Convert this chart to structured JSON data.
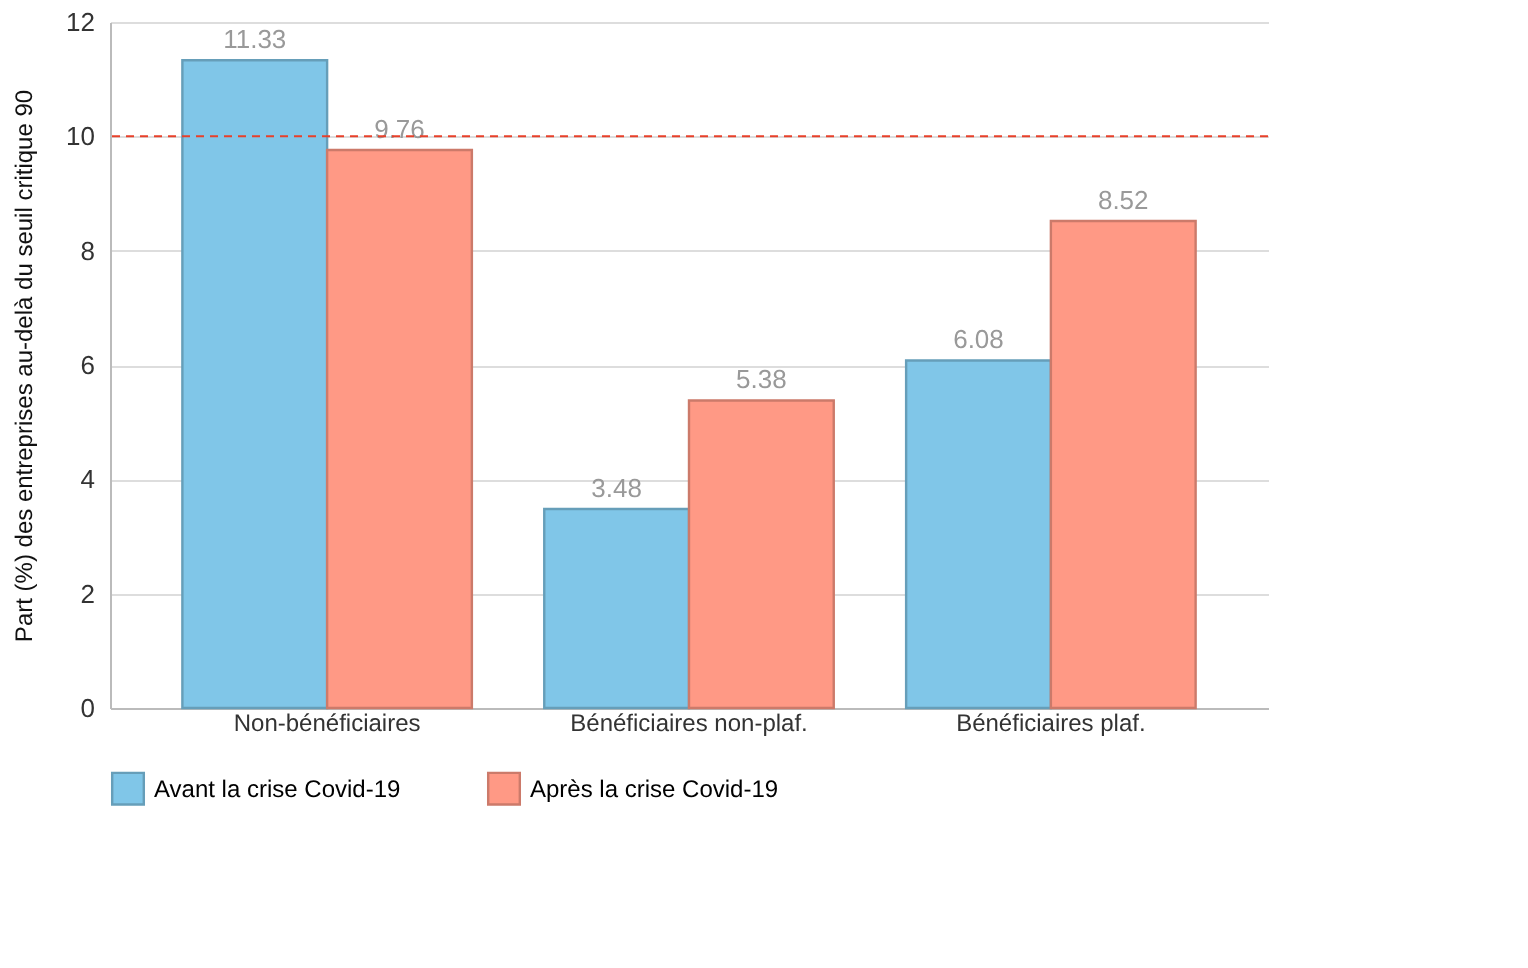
{
  "chart_data": {
    "type": "bar",
    "ylabel": "Part (%) des entreprises au-delà du seuil critique 90",
    "categories": [
      "Non-bénéficiaires",
      "Bénéficiaires non-plaf.",
      "Bénéficiaires plaf."
    ],
    "series": [
      {
        "name": "Avant la crise Covid-19",
        "color": "#80c6e8",
        "values": [
          11.33,
          3.48,
          6.08
        ]
      },
      {
        "name": "Après la crise Covid-19",
        "color": "#ff9985",
        "values": [
          9.76,
          5.38,
          8.52
        ]
      }
    ],
    "ylim": [
      0,
      12
    ],
    "yticks": [
      0,
      2,
      4,
      6,
      8,
      10,
      12
    ],
    "grid": "y",
    "legend": "bottom",
    "data_labels": true,
    "ref_lines": [
      {
        "axis": "y",
        "value": 10,
        "color": "#e8402a",
        "line_style": "dashed"
      }
    ]
  }
}
